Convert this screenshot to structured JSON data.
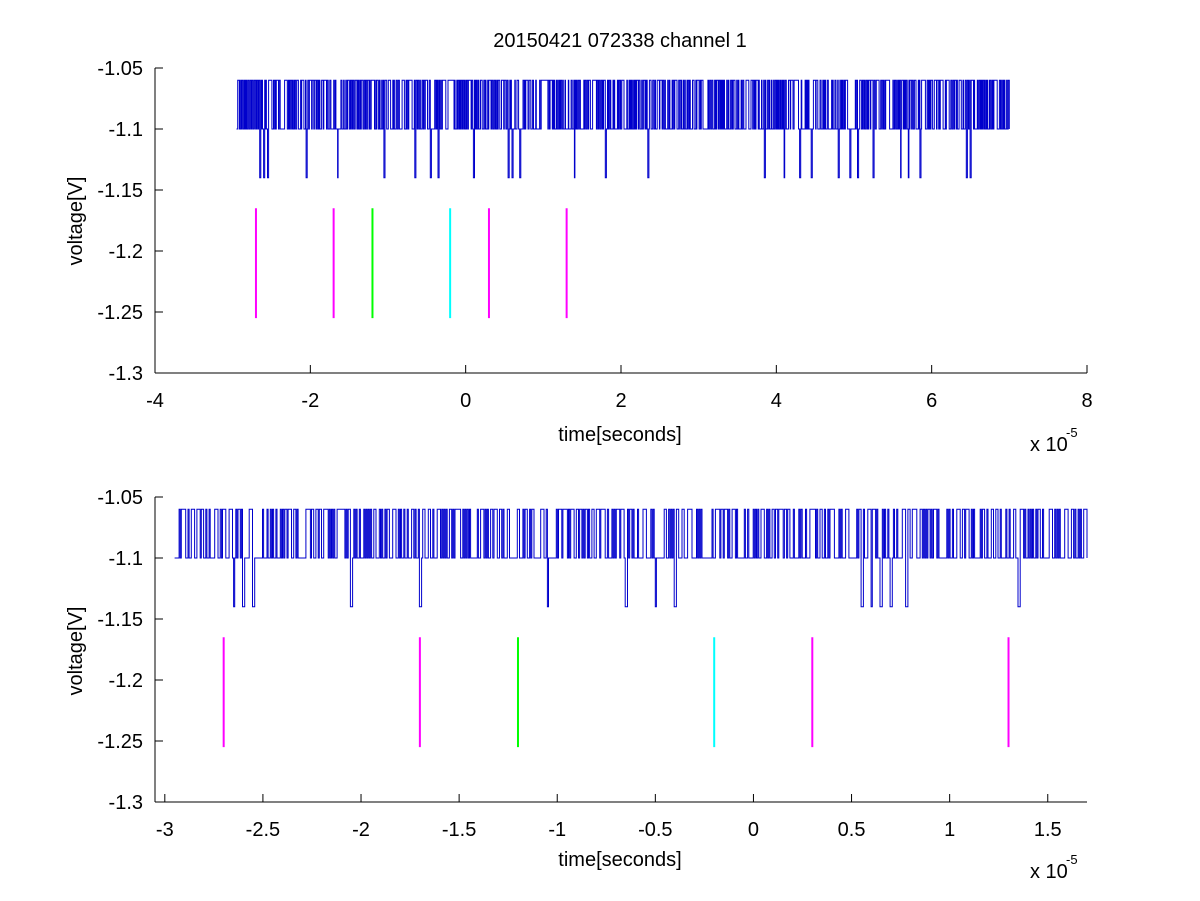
{
  "figure": {
    "title": "20150421 072338 channel 1",
    "background": "#ffffff"
  },
  "chart_data": [
    {
      "type": "line",
      "title": "20150421 072338 channel 1",
      "xlabel": "time[seconds]",
      "ylabel": "voltage[V]",
      "x_exponent_label": "x 10",
      "x_exponent": "-5",
      "xlim": [
        -4,
        8
      ],
      "ylim": [
        -1.3,
        -1.05
      ],
      "x_ticks": [
        -4,
        -2,
        0,
        2,
        4,
        6,
        8
      ],
      "x_tick_labels": [
        "-4",
        "-2",
        "0",
        "2",
        "4",
        "6",
        "8"
      ],
      "y_ticks": [
        -1.05,
        -1.1,
        -1.15,
        -1.2,
        -1.25,
        -1.3
      ],
      "y_tick_labels": [
        "-1.05",
        "-1.1",
        "-1.15",
        "-1.2",
        "-1.25",
        "-1.3"
      ],
      "grid": false,
      "box": false,
      "trace": {
        "color": "#0000cc",
        "x_start": -2.95,
        "x_end": 7.0,
        "levels": [
          -1.06,
          -1.1,
          -1.14
        ],
        "baseline": -1.1,
        "dips_x": [
          -2.65,
          -2.6,
          -2.55,
          -2.05,
          -1.65,
          -1.05,
          -0.65,
          -0.45,
          -0.35,
          0.1,
          0.55,
          0.6,
          0.7,
          1.4,
          1.8,
          2.35,
          3.85,
          4.1,
          4.3,
          4.45,
          4.8,
          4.95,
          5.05,
          5.25,
          5.6,
          5.7,
          5.85,
          6.45,
          6.5
        ]
      },
      "markers": [
        {
          "x": -2.7,
          "y_range": [
            -1.255,
            -1.165
          ],
          "color": "#ff00ff"
        },
        {
          "x": -1.7,
          "y_range": [
            -1.255,
            -1.165
          ],
          "color": "#ff00ff"
        },
        {
          "x": -1.2,
          "y_range": [
            -1.255,
            -1.165
          ],
          "color": "#00ff00"
        },
        {
          "x": -0.2,
          "y_range": [
            -1.255,
            -1.165
          ],
          "color": "#00ffff"
        },
        {
          "x": 0.3,
          "y_range": [
            -1.255,
            -1.165
          ],
          "color": "#ff00ff"
        },
        {
          "x": 1.3,
          "y_range": [
            -1.255,
            -1.165
          ],
          "color": "#ff00ff"
        }
      ]
    },
    {
      "type": "line",
      "xlabel": "time[seconds]",
      "ylabel": "voltage[V]",
      "x_exponent_label": "x 10",
      "x_exponent": "-5",
      "xlim": [
        -3.05,
        1.7
      ],
      "ylim": [
        -1.3,
        -1.05
      ],
      "x_ticks": [
        -3,
        -2.5,
        -2,
        -1.5,
        -1,
        -0.5,
        0,
        0.5,
        1,
        1.5
      ],
      "x_tick_labels": [
        "-3",
        "-2.5",
        "-2",
        "-1.5",
        "-1",
        "-0.5",
        "0",
        "0.5",
        "1",
        "1.5"
      ],
      "y_ticks": [
        -1.05,
        -1.1,
        -1.15,
        -1.2,
        -1.25,
        -1.3
      ],
      "y_tick_labels": [
        "-1.05",
        "-1.1",
        "-1.15",
        "-1.2",
        "-1.25",
        "-1.3"
      ],
      "grid": false,
      "box": false,
      "trace": {
        "color": "#0000cc",
        "x_start": -2.95,
        "x_end": 1.7,
        "levels": [
          -1.06,
          -1.1,
          -1.14
        ],
        "baseline": -1.1,
        "dips_x": [
          -2.65,
          -2.6,
          -2.55,
          -2.05,
          -1.7,
          -1.05,
          -0.65,
          -0.5,
          -0.4,
          0.55,
          0.6,
          0.65,
          0.7,
          0.78,
          1.35
        ]
      },
      "markers": [
        {
          "x": -2.7,
          "y_range": [
            -1.255,
            -1.165
          ],
          "color": "#ff00ff"
        },
        {
          "x": -1.7,
          "y_range": [
            -1.255,
            -1.165
          ],
          "color": "#ff00ff"
        },
        {
          "x": -1.2,
          "y_range": [
            -1.255,
            -1.165
          ],
          "color": "#00ff00"
        },
        {
          "x": -0.2,
          "y_range": [
            -1.255,
            -1.165
          ],
          "color": "#00ffff"
        },
        {
          "x": 0.3,
          "y_range": [
            -1.255,
            -1.165
          ],
          "color": "#ff00ff"
        },
        {
          "x": 1.3,
          "y_range": [
            -1.255,
            -1.165
          ],
          "color": "#ff00ff"
        }
      ]
    }
  ]
}
